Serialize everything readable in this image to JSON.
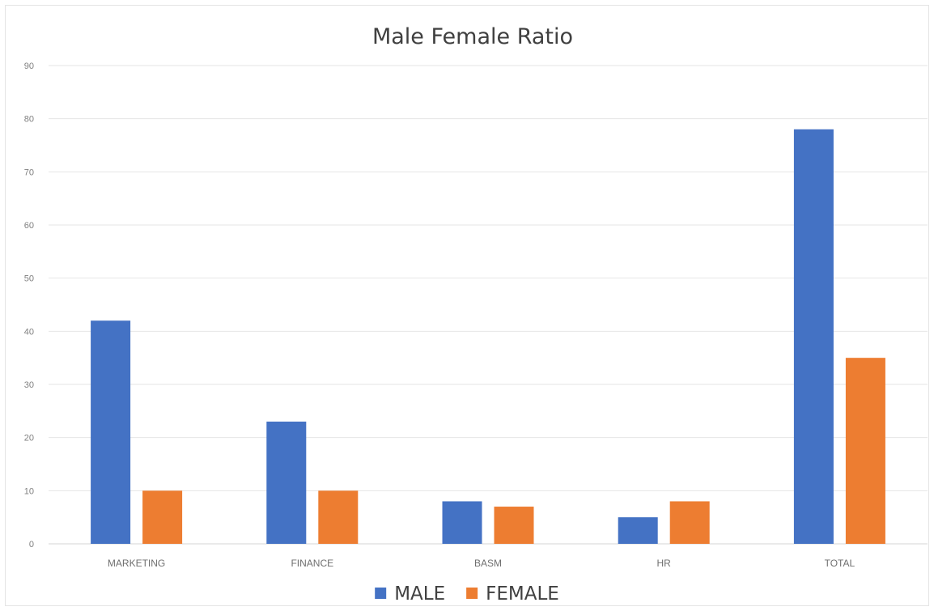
{
  "chart_data": {
    "type": "bar",
    "title": "Male Female Ratio",
    "xlabel": "",
    "ylabel": "",
    "categories": [
      "MARKETING",
      "FINANCE",
      "BASM",
      "HR",
      "TOTAL"
    ],
    "series": [
      {
        "name": "MALE",
        "color": "#4472c4",
        "values": [
          42,
          23,
          8,
          5,
          78
        ]
      },
      {
        "name": "FEMALE",
        "color": "#ed7d31",
        "values": [
          10,
          10,
          7,
          8,
          35
        ]
      }
    ],
    "ylim": [
      0,
      90
    ],
    "yticks": [
      0,
      10,
      20,
      30,
      40,
      50,
      60,
      70,
      80,
      90
    ],
    "grid": true,
    "legend_position": "bottom"
  }
}
